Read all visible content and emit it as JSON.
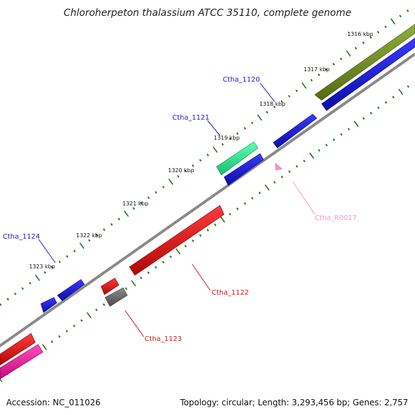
{
  "title": "Chloroherpeton thalassium ATCC 35110, complete genome",
  "footer": {
    "accession": "Accession: NC_011026",
    "topology": "Topology: circular; Length: 3,293,456 bp; Genes: 2,757"
  },
  "kbp_labels": [
    "1316 kbp",
    "1317 kbp",
    "1318 kbp",
    "1319 kbp",
    "1320 kbp",
    "1321 kbp",
    "1322 kbp",
    "1323 kbp"
  ],
  "genes": [
    {
      "id": "Ctha_1120",
      "color": "#1a1ad6"
    },
    {
      "id": "Ctha_1121",
      "color": "#1a1ad6"
    },
    {
      "id": "Ctha_R0017",
      "color": "#f29ac8"
    },
    {
      "id": "Ctha_1122",
      "color": "#e01212"
    },
    {
      "id": "Ctha_1123",
      "color": "#e01212"
    },
    {
      "id": "Ctha_1124",
      "color": "#1a1ad6"
    }
  ],
  "colors": {
    "backbone": "#8a8a8a",
    "tick": "#1f7a1f",
    "olive": "#6f8a24",
    "blue": "#1a1ad6",
    "red": "#e01212",
    "pink": "#f01a9a",
    "teal": "#28e08a",
    "gray": "#6c6c6c"
  }
}
